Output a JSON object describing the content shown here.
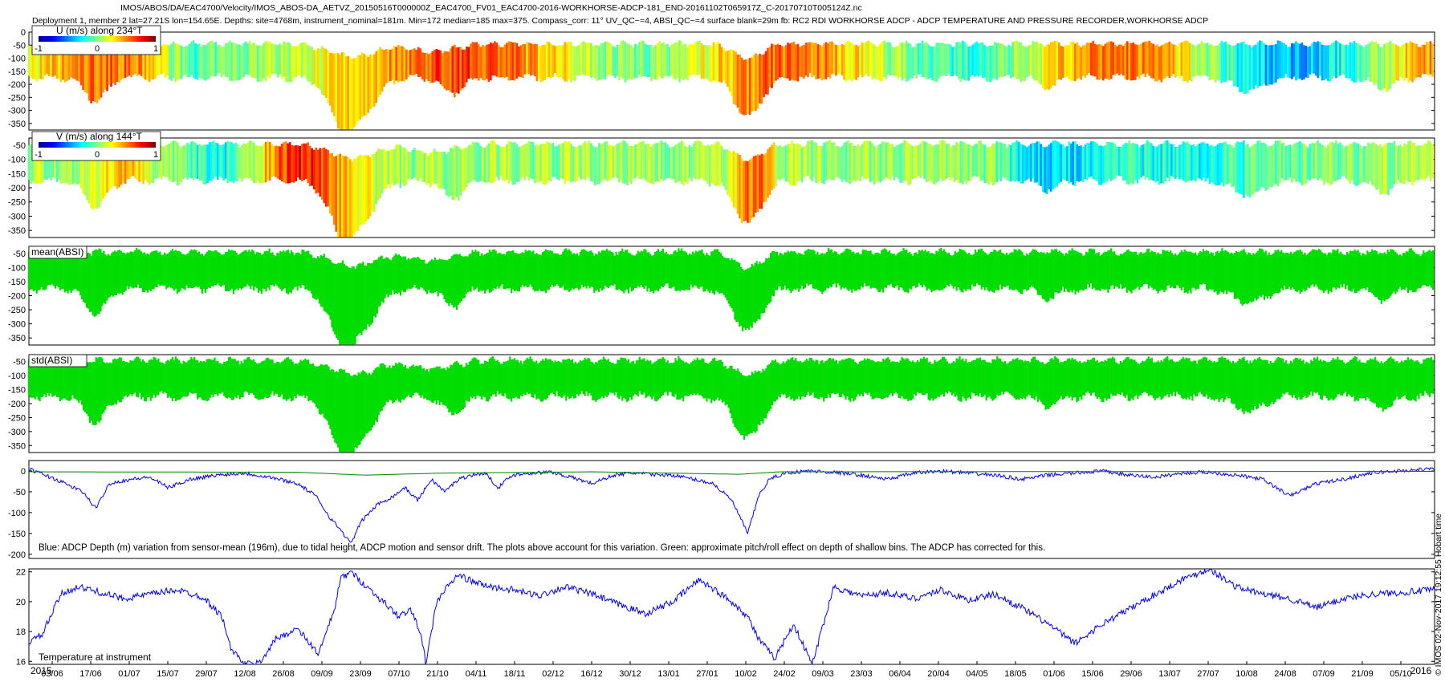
{
  "header": {
    "line1": "IMOS/ABOS/DA/EAC4700/Velocity/IMOS_ABOS-DA_AETVZ_20150516T000000Z_EAC4700_FV01_EAC4700-2016-WORKHORSE-ADCP-181_END-20161102T065917Z_C-20170710T005124Z.nc",
    "line2": "Deployment 1, member 2 lat=27.21S lon=154.65E. Depths: site=4768m, instrument_nominal=181m. Min=172 median=185 max=375. Compass_corr: 11° UV_QC~=4, ABSI_QC~=4 surface blank=29m fb: RC2 RDI WORKHORSE ADCP - ADCP TEMPERATURE AND PRESSURE RECORDER,WORKHORSE ADCP"
  },
  "side_stamp": "© IMOS 02-Nov-2017 19:12:55 Hobart time",
  "colors": {
    "blue_line": "#0000ff",
    "green_line": "#008000",
    "absi_fill": "#00dd00"
  },
  "chart_data": [
    {
      "type": "heatmap",
      "panel_title": "U (m/s) along 234°T",
      "colorbar": {
        "ticks": [
          "-1",
          "0",
          "1"
        ],
        "range": [
          -1,
          1
        ],
        "colormap": "jet"
      },
      "yticks": [
        "0",
        "-50",
        "-100",
        "-150",
        "-200",
        "-250",
        "-300",
        "-350"
      ],
      "ylim": [
        -375,
        0
      ]
    },
    {
      "type": "heatmap",
      "panel_title": "V (m/s) along 144°T",
      "colorbar": {
        "ticks": [
          "-1",
          "0",
          "1"
        ],
        "range": [
          -1,
          1
        ],
        "colormap": "jet"
      },
      "yticks": [
        "-50",
        "-100",
        "-150",
        "-200",
        "-250",
        "-300",
        "-350"
      ],
      "ylim": [
        -375,
        -25
      ]
    },
    {
      "type": "area",
      "panel_title": "mean(ABSI)",
      "yticks": [
        "-50",
        "-100",
        "-150",
        "-200",
        "-250",
        "-300",
        "-350"
      ],
      "ylim": [
        -375,
        -25
      ]
    },
    {
      "type": "area",
      "panel_title": "std(ABSI)",
      "yticks": [
        "-50",
        "-100",
        "-150",
        "-200",
        "-250",
        "-300",
        "-350"
      ],
      "ylim": [
        -375,
        -25
      ]
    },
    {
      "type": "line",
      "annotation": "Blue: ADCP Depth (m) variation from sensor-mean (196m), due to tidal height, ADCP motion and sensor drift. The plots above account for this variation. Green: approximate pitch/roll effect on depth of shallow bins. The ADCP has corrected for this.",
      "yticks": [
        "0",
        "-50",
        "-100",
        "-150",
        "-200"
      ],
      "ylim": [
        -210,
        25
      ],
      "series": [
        {
          "color": "blue",
          "x": [
            0,
            10,
            20,
            25,
            30,
            38,
            45,
            52,
            60,
            70,
            80,
            90,
            100,
            107,
            112,
            116,
            120,
            124,
            130,
            136,
            140,
            145,
            150,
            155,
            160,
            165,
            170,
            175,
            180,
            187,
            195,
            202,
            210,
            218,
            225,
            232,
            240,
            248,
            255,
            262,
            268,
            272,
            276,
            282,
            290,
            300,
            310,
            320,
            330,
            340,
            350,
            360,
            370,
            380,
            390,
            400,
            410,
            420,
            430,
            440,
            450,
            460,
            470,
            480,
            490,
            500,
            510,
            524
          ],
          "y": [
            5,
            -20,
            -50,
            -90,
            -30,
            -20,
            -15,
            -40,
            -20,
            -10,
            -5,
            -15,
            -30,
            -60,
            -110,
            -140,
            -175,
            -120,
            -80,
            -60,
            -40,
            -70,
            -20,
            -50,
            -20,
            -10,
            -5,
            -40,
            -10,
            -5,
            -3,
            -15,
            -30,
            -10,
            -5,
            -8,
            -10,
            -20,
            -30,
            -70,
            -150,
            -60,
            -20,
            -5,
            0,
            -3,
            -10,
            -20,
            -5,
            0,
            -5,
            -10,
            -20,
            -10,
            -5,
            0,
            -10,
            -15,
            -5,
            -3,
            -10,
            -20,
            -60,
            -30,
            -20,
            -5,
            0,
            5
          ]
        },
        {
          "color": "green",
          "x": [
            0,
            100,
            125,
            155,
            210,
            265,
            280,
            524
          ],
          "y": [
            -2,
            -3,
            -10,
            -5,
            -2,
            -8,
            -2,
            -1
          ]
        }
      ]
    },
    {
      "type": "line",
      "panel_title": "Temperature at instrument",
      "yticks": [
        "22",
        "20",
        "18",
        "16"
      ],
      "ylim": [
        15.8,
        22.2
      ],
      "series": [
        {
          "color": "blue",
          "x": [
            0,
            5,
            8,
            12,
            18,
            25,
            35,
            45,
            55,
            65,
            72,
            75,
            80,
            86,
            92,
            100,
            108,
            114,
            116,
            120,
            126,
            132,
            138,
            142,
            146,
            148,
            152,
            156,
            160,
            166,
            172,
            180,
            190,
            200,
            210,
            220,
            230,
            240,
            250,
            262,
            268,
            272,
            278,
            285,
            292,
            300,
            310,
            320,
            330,
            340,
            350,
            360,
            370,
            380,
            390,
            400,
            410,
            420,
            430,
            440,
            450,
            460,
            470,
            480,
            490,
            500,
            510,
            524
          ],
          "y": [
            17.3,
            17.8,
            19,
            20.5,
            21,
            20.7,
            20.2,
            20.5,
            20.8,
            20.3,
            19,
            17,
            15.8,
            15.9,
            17.5,
            18.2,
            16.5,
            19.5,
            21.5,
            22,
            21,
            20,
            19,
            19.5,
            18,
            15.8,
            20,
            21,
            21.8,
            21.3,
            21,
            20.8,
            20.4,
            21,
            20.5,
            19.8,
            19.2,
            20,
            21.5,
            20,
            19,
            17.5,
            16.2,
            18.5,
            15.8,
            21,
            20.4,
            20.6,
            20.2,
            20.8,
            20.1,
            20.5,
            19.6,
            18.5,
            17.2,
            18.5,
            19.5,
            20.5,
            21.5,
            22.2,
            21,
            20.5,
            20.2,
            19.6,
            20.2,
            20.5,
            20.6,
            20.8
          ]
        }
      ]
    }
  ],
  "xaxis": {
    "labels": [
      "03/06",
      "17/06",
      "01/07",
      "15/07",
      "29/07",
      "12/08",
      "26/08",
      "09/09",
      "23/09",
      "07/10",
      "21/10",
      "04/11",
      "18/11",
      "02/12",
      "16/12",
      "30/12",
      "13/01",
      "27/01",
      "10/02",
      "24/02",
      "09/03",
      "23/03",
      "06/04",
      "20/04",
      "04/05",
      "18/05",
      "01/06",
      "15/06",
      "29/06",
      "13/07",
      "27/07",
      "10/08",
      "24/08",
      "07/09",
      "21/09",
      "05/10"
    ],
    "year_start": "2015",
    "year_end": "2016"
  }
}
